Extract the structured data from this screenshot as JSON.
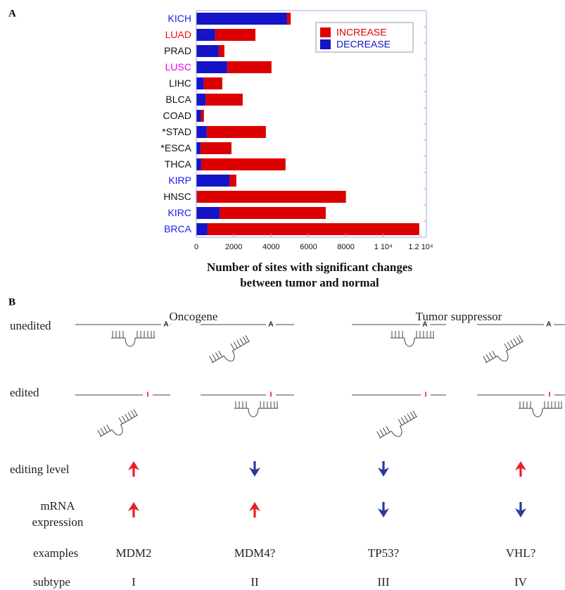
{
  "panel_a_label": "A",
  "chart_data": {
    "type": "stacked-barh",
    "categories": [
      "KICH",
      "LUAD",
      "PRAD",
      "LUSC",
      "LIHC",
      "BLCA",
      "COAD",
      "*STAD",
      "*ESCA",
      "THCA",
      "KIRP",
      "HNSC",
      "KIRC",
      "BRCA"
    ],
    "category_colors": [
      "#1a1aee",
      "#ee1111",
      "#111111",
      "#ee00ee",
      "#111111",
      "#111111",
      "#111111",
      "#111111",
      "#111111",
      "#111111",
      "#1a1aee",
      "#111111",
      "#1a1aee",
      "#1a1aee"
    ],
    "series": [
      {
        "name": "INCREASE",
        "color": "#dc0000",
        "values": [
          200,
          2160,
          300,
          2370,
          990,
          1980,
          150,
          3160,
          1650,
          4510,
          370,
          7960,
          5680,
          11320
        ]
      },
      {
        "name": "DECREASE",
        "color": "#1414c8",
        "values": [
          4850,
          1000,
          1200,
          1650,
          400,
          500,
          260,
          560,
          230,
          260,
          1770,
          40,
          1240,
          600
        ]
      }
    ],
    "xlim": [
      0,
      12300
    ],
    "xticks": [
      0,
      2000,
      4000,
      6000,
      8000,
      {
        "value": 10000,
        "label": "1 10⁴"
      },
      {
        "value": 12000,
        "label": "1.2 10⁴"
      }
    ],
    "xlabel": [
      "Number of sites with significant changes",
      "between tumor and normal"
    ],
    "legend": "upper right",
    "grid": false
  },
  "panel_b": {
    "label": "B",
    "groups": [
      "Oncogene",
      "Tumor suppressor"
    ],
    "row_labels": {
      "unedited": "unedited",
      "edited": "edited",
      "editing_level": "editing level",
      "mrna_line1": "mRNA",
      "mrna_line2": "expression",
      "examples": "examples",
      "subtype": "subtype"
    },
    "unedited_base": "A",
    "edited_base": "I",
    "examples": [
      "MDM2",
      "MDM4?",
      "TP53?",
      "VHL?"
    ],
    "subtypes": [
      "I",
      "II",
      "III",
      "IV"
    ]
  }
}
